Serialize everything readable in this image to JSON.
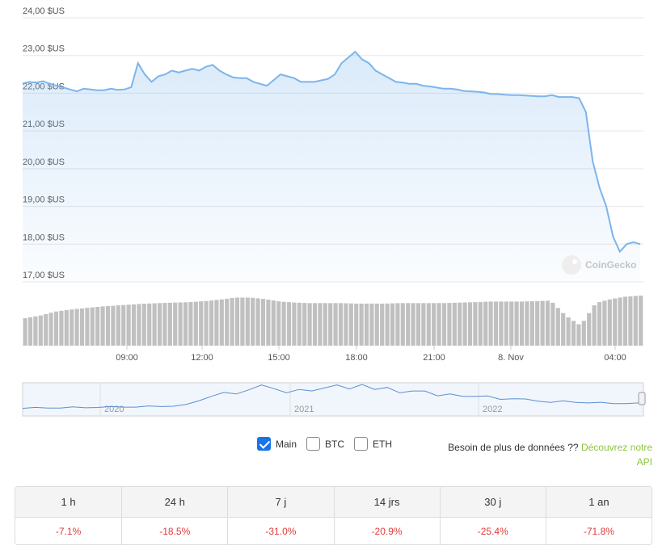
{
  "chart_data": {
    "type": "line",
    "y_axis": {
      "ticks": [
        "24,00 $US",
        "23,00 $US",
        "22,00 $US",
        "21,00 $US",
        "20,00 $US",
        "19,00 $US",
        "18,00 $US",
        "17,00 $US"
      ],
      "tick_values": [
        24,
        23,
        22,
        21,
        20,
        19,
        18,
        17
      ],
      "ylim": [
        17,
        24
      ]
    },
    "x_axis": {
      "ticks": [
        "09:00",
        "12:00",
        "15:00",
        "18:00",
        "21:00",
        "8. Nov",
        "04:00"
      ]
    },
    "series": [
      {
        "values": [
          22.26,
          22.3,
          22.28,
          22.32,
          22.25,
          22.2,
          22.15,
          22.1,
          22.05,
          22.12,
          22.1,
          22.08,
          22.08,
          22.12,
          22.09,
          22.1,
          22.16,
          22.8,
          22.5,
          22.3,
          22.45,
          22.5,
          22.6,
          22.55,
          22.6,
          22.65,
          22.6,
          22.7,
          22.75,
          22.6,
          22.5,
          22.42,
          22.4,
          22.4,
          22.3,
          22.25,
          22.2,
          22.35,
          22.5,
          22.45,
          22.4,
          22.3,
          22.3,
          22.3,
          22.34,
          22.38,
          22.5,
          22.8,
          22.95,
          23.1,
          22.9,
          22.8,
          22.6,
          22.5,
          22.4,
          22.3,
          22.28,
          22.25,
          22.25,
          22.2,
          22.18,
          22.15,
          22.12,
          22.12,
          22.1,
          22.06,
          22.05,
          22.04,
          22.02,
          21.98,
          21.98,
          21.96,
          21.95,
          21.95,
          21.94,
          21.93,
          21.92,
          21.92,
          21.95,
          21.9,
          21.9,
          21.9,
          21.87,
          21.5,
          20.2,
          19.5,
          19.0,
          18.2,
          17.8,
          18.0,
          18.05,
          18.0
        ]
      }
    ],
    "volume": {
      "values": [
        0.55,
        0.6,
        0.68,
        0.72,
        0.75,
        0.78,
        0.8,
        0.82,
        0.84,
        0.85,
        0.86,
        0.87,
        0.89,
        0.92,
        0.96,
        0.96,
        0.93,
        0.88,
        0.86,
        0.85,
        0.85,
        0.85,
        0.84,
        0.84,
        0.84,
        0.85,
        0.85,
        0.85,
        0.85,
        0.86,
        0.87,
        0.88,
        0.88,
        0.88,
        0.89,
        0.9,
        0.6,
        0.4,
        0.85,
        0.93,
        0.98,
        1.0
      ]
    },
    "navigator": {
      "labels": [
        "2020",
        "2021",
        "2022"
      ],
      "values": [
        0.2,
        0.2,
        0.21,
        0.21,
        0.22,
        0.22,
        0.23,
        0.23,
        0.24,
        0.24,
        0.25,
        0.26,
        0.27,
        0.3,
        0.45,
        0.6,
        0.7,
        0.68,
        0.82,
        0.95,
        0.86,
        0.72,
        0.8,
        0.78,
        0.88,
        0.95,
        0.85,
        1.0,
        0.8,
        0.9,
        0.72,
        0.75,
        0.78,
        0.62,
        0.65,
        0.6,
        0.6,
        0.58,
        0.5,
        0.52,
        0.48,
        0.44,
        0.4,
        0.42,
        0.4,
        0.38,
        0.37,
        0.36,
        0.36,
        0.35
      ]
    },
    "watermark": "CoinGecko",
    "colors": {
      "line": "#7cb5ec",
      "grid": "#e6e6e6",
      "volume": "#c0c0c0",
      "axis_text": "#666666",
      "change_negative": "#e03b3b"
    }
  },
  "controls": {
    "items": [
      {
        "label": "Main",
        "checked": true
      },
      {
        "label": "BTC",
        "checked": false
      },
      {
        "label": "ETH",
        "checked": false
      }
    ],
    "api_text": "Besoin de plus de données ??",
    "api_link": "Découvrez notre API"
  },
  "stats": [
    {
      "period": "1 h",
      "change": "-7.1%"
    },
    {
      "period": "24 h",
      "change": "-18.5%"
    },
    {
      "period": "7 j",
      "change": "-31.0%"
    },
    {
      "period": "14 jrs",
      "change": "-20.9%"
    },
    {
      "period": "30 j",
      "change": "-25.4%"
    },
    {
      "period": "1 an",
      "change": "-71.8%"
    }
  ]
}
